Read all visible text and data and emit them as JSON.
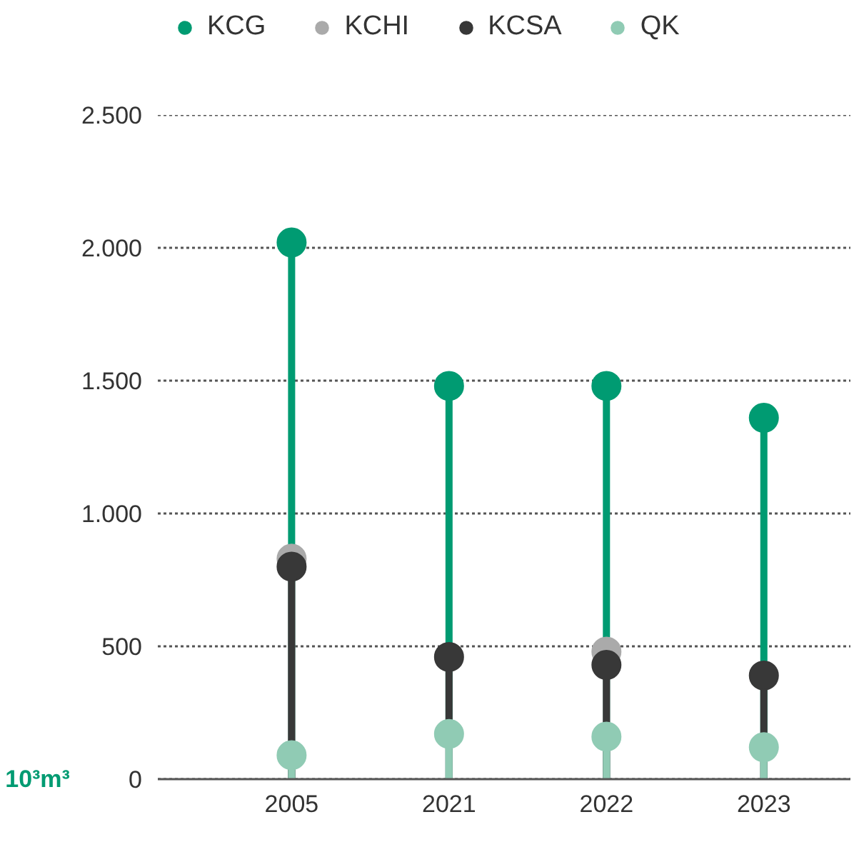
{
  "chart_data": {
    "type": "lollipop",
    "ylabel": "10³m³",
    "categories": [
      "2005",
      "2021",
      "2022",
      "2023"
    ],
    "series": [
      {
        "name": "KCG",
        "color": "#009b72",
        "values": [
          2020,
          1480,
          1480,
          1360
        ]
      },
      {
        "name": "KCHI",
        "color": "#aaaaaa",
        "values": [
          830,
          null,
          480,
          null
        ]
      },
      {
        "name": "KCSA",
        "color": "#383838",
        "values": [
          800,
          460,
          430,
          390
        ]
      },
      {
        "name": "QK",
        "color": "#90cbb4",
        "values": [
          90,
          170,
          160,
          120
        ]
      }
    ],
    "ylim": [
      0,
      2500
    ],
    "yticks": [
      0,
      500,
      {
        "value": 1000,
        "label": "1.000"
      },
      {
        "value": 1500,
        "label": "1.500"
      },
      {
        "value": 2000,
        "label": "2.000"
      },
      {
        "value": 2500,
        "label": "2.500"
      }
    ],
    "grid": "y",
    "legend": "top left",
    "marker": "circle"
  }
}
